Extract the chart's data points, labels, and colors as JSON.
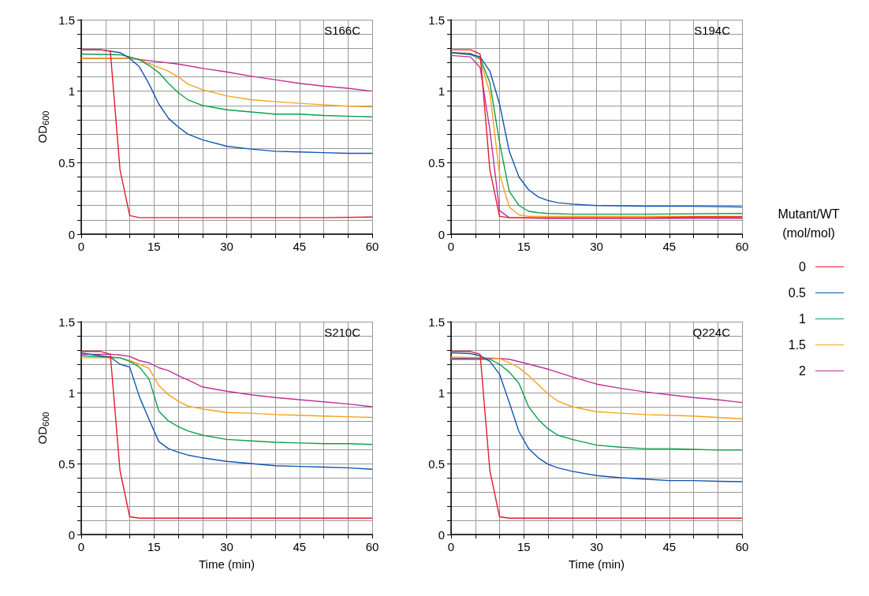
{
  "chart_data": [
    {
      "type": "line",
      "title": "S166C",
      "ylabel": "OD$_{600}$",
      "legend": "right",
      "legend_title": "Mutant/WT\n(mol/mol)",
      "grid": true,
      "marker": "none",
      "line_style": "solid",
      "xlim": [
        0,
        60
      ],
      "ylim": [
        0,
        1.5
      ],
      "xticks": [
        0,
        {
          "value": 5,
          "label": null
        },
        {
          "value": 10,
          "label": null
        },
        15,
        {
          "value": 20,
          "label": null
        },
        {
          "value": 25,
          "label": null
        },
        30,
        {
          "value": 35,
          "label": null
        },
        {
          "value": 40,
          "label": null
        },
        45,
        {
          "value": 50,
          "label": null
        },
        {
          "value": 55,
          "label": null
        },
        60
      ],
      "yticks": [
        0,
        {
          "value": 0.1,
          "label": null
        },
        {
          "value": 0.2,
          "label": null
        },
        {
          "value": 0.3,
          "label": null
        },
        {
          "value": 0.4,
          "label": null
        },
        0.5,
        {
          "value": 0.6,
          "label": null
        },
        {
          "value": 0.7,
          "label": null
        },
        {
          "value": 0.8,
          "label": null
        },
        {
          "value": 0.9,
          "label": null
        },
        1,
        {
          "value": 1.1,
          "label": null
        },
        {
          "value": 1.2,
          "label": null
        },
        {
          "value": 1.3,
          "label": null
        },
        {
          "value": 1.4,
          "label": null
        },
        1.5
      ],
      "series": [
        {
          "name": "0",
          "color": "#e8192c",
          "x": [
            0,
            4,
            6,
            8,
            10,
            12,
            20,
            30,
            40,
            50,
            60
          ],
          "values": [
            1.29,
            1.29,
            1.28,
            0.45,
            0.13,
            0.115,
            0.115,
            0.115,
            0.115,
            0.115,
            0.12
          ]
        },
        {
          "name": "0.5",
          "color": "#1155b0",
          "x": [
            0,
            4,
            8,
            10,
            12,
            14,
            16,
            18,
            20,
            22,
            25,
            30,
            35,
            40,
            45,
            50,
            55,
            60
          ],
          "values": [
            1.29,
            1.29,
            1.27,
            1.23,
            1.17,
            1.05,
            0.91,
            0.81,
            0.75,
            0.7,
            0.66,
            0.615,
            0.595,
            0.58,
            0.575,
            0.57,
            0.565,
            0.565
          ]
        },
        {
          "name": "1",
          "color": "#0aa04a",
          "x": [
            0,
            8,
            10,
            12,
            14,
            16,
            18,
            20,
            22,
            25,
            30,
            35,
            40,
            45,
            50,
            55,
            60
          ],
          "values": [
            1.26,
            1.255,
            1.24,
            1.22,
            1.18,
            1.13,
            1.055,
            0.99,
            0.94,
            0.9,
            0.87,
            0.855,
            0.84,
            0.84,
            0.83,
            0.825,
            0.82
          ]
        },
        {
          "name": "1.5",
          "color": "#f7a11a",
          "x": [
            0,
            10,
            12,
            15,
            18,
            20,
            22,
            25,
            30,
            35,
            40,
            45,
            50,
            55,
            60
          ],
          "values": [
            1.23,
            1.23,
            1.22,
            1.18,
            1.14,
            1.1,
            1.05,
            1.01,
            0.967,
            0.94,
            0.927,
            0.915,
            0.905,
            0.895,
            0.89
          ]
        },
        {
          "name": "2",
          "color": "#c0309a",
          "x": [
            0,
            10,
            15,
            20,
            25,
            30,
            35,
            40,
            45,
            50,
            55,
            60
          ],
          "values": [
            1.23,
            1.23,
            1.21,
            1.19,
            1.16,
            1.135,
            1.105,
            1.08,
            1.055,
            1.035,
            1.02,
            1.0
          ]
        }
      ]
    },
    {
      "type": "line",
      "title": "S194C",
      "grid": true,
      "marker": "none",
      "line_style": "solid",
      "xlim": [
        0,
        60
      ],
      "ylim": [
        0,
        1.5
      ],
      "xticks": [
        0,
        {
          "value": 5,
          "label": null
        },
        {
          "value": 10,
          "label": null
        },
        15,
        {
          "value": 20,
          "label": null
        },
        {
          "value": 25,
          "label": null
        },
        30,
        {
          "value": 35,
          "label": null
        },
        {
          "value": 40,
          "label": null
        },
        45,
        {
          "value": 50,
          "label": null
        },
        {
          "value": 55,
          "label": null
        },
        60
      ],
      "yticks": [
        0,
        {
          "value": 0.1,
          "label": null
        },
        {
          "value": 0.2,
          "label": null
        },
        {
          "value": 0.3,
          "label": null
        },
        {
          "value": 0.4,
          "label": null
        },
        0.5,
        {
          "value": 0.6,
          "label": null
        },
        {
          "value": 0.7,
          "label": null
        },
        {
          "value": 0.8,
          "label": null
        },
        {
          "value": 0.9,
          "label": null
        },
        1,
        {
          "value": 1.1,
          "label": null
        },
        {
          "value": 1.2,
          "label": null
        },
        {
          "value": 1.3,
          "label": null
        },
        {
          "value": 1.4,
          "label": null
        },
        1.5
      ],
      "series": [
        {
          "name": "0",
          "color": "#e8192c",
          "x": [
            0,
            4,
            6,
            8,
            10,
            12,
            20,
            30,
            40,
            50,
            60
          ],
          "values": [
            1.29,
            1.29,
            1.26,
            0.45,
            0.125,
            0.115,
            0.115,
            0.115,
            0.115,
            0.12,
            0.12
          ]
        },
        {
          "name": "0.5",
          "color": "#1155b0",
          "x": [
            0,
            4,
            6,
            8,
            10,
            12,
            14,
            16,
            18,
            20,
            22,
            25,
            30,
            40,
            50,
            60
          ],
          "values": [
            1.27,
            1.26,
            1.24,
            1.14,
            0.91,
            0.58,
            0.4,
            0.31,
            0.26,
            0.235,
            0.22,
            0.21,
            0.2,
            0.195,
            0.195,
            0.19
          ]
        },
        {
          "name": "1",
          "color": "#0aa04a",
          "x": [
            0,
            4,
            6,
            8,
            10,
            12,
            14,
            16,
            18,
            20,
            25,
            40,
            60
          ],
          "values": [
            1.27,
            1.255,
            1.23,
            1.06,
            0.64,
            0.3,
            0.2,
            0.16,
            0.15,
            0.145,
            0.14,
            0.14,
            0.145
          ]
        },
        {
          "name": "1.5",
          "color": "#f7a11a",
          "x": [
            0,
            4,
            6,
            8,
            10,
            12,
            14,
            16,
            20,
            40,
            60
          ],
          "values": [
            1.27,
            1.265,
            1.22,
            0.99,
            0.42,
            0.19,
            0.135,
            0.125,
            0.125,
            0.125,
            0.125
          ]
        },
        {
          "name": "2",
          "color": "#c0309a",
          "x": [
            0,
            4,
            6,
            8,
            10,
            12,
            20,
            40,
            60
          ],
          "values": [
            1.25,
            1.24,
            1.165,
            0.73,
            0.165,
            0.115,
            0.11,
            0.11,
            0.11
          ]
        }
      ]
    },
    {
      "type": "line",
      "title": "S210C",
      "xlabel": "Time (min)",
      "ylabel": "OD$_{600}$",
      "grid": true,
      "marker": "none",
      "line_style": "solid",
      "xlim": [
        0,
        60
      ],
      "ylim": [
        0,
        1.5
      ],
      "xticks": [
        0,
        {
          "value": 5,
          "label": null
        },
        {
          "value": 10,
          "label": null
        },
        15,
        {
          "value": 20,
          "label": null
        },
        {
          "value": 25,
          "label": null
        },
        30,
        {
          "value": 35,
          "label": null
        },
        {
          "value": 40,
          "label": null
        },
        45,
        {
          "value": 50,
          "label": null
        },
        {
          "value": 55,
          "label": null
        },
        60
      ],
      "yticks": [
        0,
        {
          "value": 0.1,
          "label": null
        },
        {
          "value": 0.2,
          "label": null
        },
        {
          "value": 0.3,
          "label": null
        },
        {
          "value": 0.4,
          "label": null
        },
        0.5,
        {
          "value": 0.6,
          "label": null
        },
        {
          "value": 0.7,
          "label": null
        },
        {
          "value": 0.8,
          "label": null
        },
        {
          "value": 0.9,
          "label": null
        },
        1,
        {
          "value": 1.1,
          "label": null
        },
        {
          "value": 1.2,
          "label": null
        },
        {
          "value": 1.3,
          "label": null
        },
        {
          "value": 1.4,
          "label": null
        },
        1.5
      ],
      "series": [
        {
          "name": "0",
          "color": "#e8192c",
          "x": [
            0,
            4,
            6,
            8,
            10,
            12,
            20,
            30,
            40,
            50,
            60
          ],
          "values": [
            1.29,
            1.29,
            1.27,
            0.45,
            0.125,
            0.115,
            0.115,
            0.115,
            0.115,
            0.115,
            0.115
          ]
        },
        {
          "name": "0.5",
          "color": "#1155b0",
          "x": [
            0,
            4,
            6,
            8,
            10,
            12,
            14,
            16,
            18,
            20,
            22,
            25,
            30,
            35,
            40,
            45,
            50,
            55,
            60
          ],
          "values": [
            1.28,
            1.26,
            1.25,
            1.2,
            1.18,
            0.97,
            0.81,
            0.655,
            0.605,
            0.58,
            0.56,
            0.54,
            0.515,
            0.5,
            0.485,
            0.48,
            0.475,
            0.47,
            0.46
          ]
        },
        {
          "name": "1",
          "color": "#0aa04a",
          "x": [
            0,
            6,
            8,
            10,
            12,
            14,
            16,
            18,
            20,
            22,
            25,
            30,
            35,
            40,
            45,
            50,
            55,
            60
          ],
          "values": [
            1.26,
            1.25,
            1.245,
            1.22,
            1.18,
            1.095,
            0.87,
            0.8,
            0.76,
            0.73,
            0.7,
            0.67,
            0.66,
            0.65,
            0.645,
            0.64,
            0.64,
            0.635
          ]
        },
        {
          "name": "1.5",
          "color": "#f7a11a",
          "x": [
            0,
            8,
            10,
            12,
            14,
            16,
            18,
            20,
            22,
            25,
            30,
            35,
            40,
            45,
            50,
            55,
            60
          ],
          "values": [
            1.245,
            1.245,
            1.225,
            1.2,
            1.17,
            1.05,
            0.985,
            0.94,
            0.905,
            0.885,
            0.86,
            0.855,
            0.845,
            0.84,
            0.835,
            0.83,
            0.825
          ]
        },
        {
          "name": "2",
          "color": "#c0309a",
          "x": [
            0,
            6,
            8,
            10,
            12,
            14,
            16,
            18,
            20,
            22,
            25,
            30,
            35,
            40,
            45,
            50,
            55,
            60
          ],
          "values": [
            1.27,
            1.27,
            1.265,
            1.255,
            1.225,
            1.21,
            1.175,
            1.155,
            1.12,
            1.09,
            1.04,
            1.01,
            0.985,
            0.965,
            0.95,
            0.935,
            0.92,
            0.9
          ]
        }
      ]
    },
    {
      "type": "line",
      "title": "Q224C",
      "xlabel": "Time (min)",
      "grid": true,
      "marker": "none",
      "line_style": "solid",
      "xlim": [
        0,
        60
      ],
      "ylim": [
        0,
        1.5
      ],
      "xticks": [
        0,
        {
          "value": 5,
          "label": null
        },
        {
          "value": 10,
          "label": null
        },
        15,
        {
          "value": 20,
          "label": null
        },
        {
          "value": 25,
          "label": null
        },
        30,
        {
          "value": 35,
          "label": null
        },
        {
          "value": 40,
          "label": null
        },
        45,
        {
          "value": 50,
          "label": null
        },
        {
          "value": 55,
          "label": null
        },
        60
      ],
      "yticks": [
        0,
        {
          "value": 0.1,
          "label": null
        },
        {
          "value": 0.2,
          "label": null
        },
        {
          "value": 0.3,
          "label": null
        },
        {
          "value": 0.4,
          "label": null
        },
        0.5,
        {
          "value": 0.6,
          "label": null
        },
        {
          "value": 0.7,
          "label": null
        },
        {
          "value": 0.8,
          "label": null
        },
        {
          "value": 0.9,
          "label": null
        },
        1,
        {
          "value": 1.1,
          "label": null
        },
        {
          "value": 1.2,
          "label": null
        },
        {
          "value": 1.3,
          "label": null
        },
        {
          "value": 1.4,
          "label": null
        },
        1.5
      ],
      "series": [
        {
          "name": "0",
          "color": "#e8192c",
          "x": [
            0,
            4,
            6,
            8,
            10,
            12,
            20,
            30,
            40,
            50,
            60
          ],
          "values": [
            1.29,
            1.29,
            1.27,
            0.45,
            0.125,
            0.115,
            0.115,
            0.115,
            0.115,
            0.115,
            0.115
          ]
        },
        {
          "name": "0.5",
          "color": "#1155b0",
          "x": [
            0,
            4,
            6,
            8,
            10,
            12,
            14,
            16,
            18,
            20,
            22,
            25,
            30,
            35,
            40,
            45,
            50,
            55,
            60
          ],
          "values": [
            1.28,
            1.275,
            1.26,
            1.22,
            1.13,
            0.93,
            0.725,
            0.605,
            0.54,
            0.495,
            0.47,
            0.445,
            0.415,
            0.4,
            0.39,
            0.38,
            0.38,
            0.375,
            0.372
          ]
        },
        {
          "name": "1",
          "color": "#0aa04a",
          "x": [
            0,
            8,
            10,
            12,
            14,
            16,
            18,
            20,
            22,
            25,
            30,
            35,
            40,
            45,
            50,
            55,
            60
          ],
          "values": [
            1.235,
            1.235,
            1.2,
            1.145,
            1.065,
            0.9,
            0.81,
            0.745,
            0.7,
            0.67,
            0.63,
            0.615,
            0.605,
            0.605,
            0.6,
            0.595,
            0.595
          ]
        },
        {
          "name": "1.5",
          "color": "#f7a11a",
          "x": [
            0,
            8,
            10,
            12,
            14,
            16,
            18,
            20,
            22,
            25,
            30,
            35,
            40,
            45,
            50,
            55,
            60
          ],
          "values": [
            1.25,
            1.245,
            1.24,
            1.21,
            1.175,
            1.12,
            1.055,
            0.99,
            0.94,
            0.9,
            0.865,
            0.855,
            0.845,
            0.84,
            0.835,
            0.825,
            0.815
          ]
        },
        {
          "name": "2",
          "color": "#c0309a",
          "x": [
            0,
            10,
            12,
            15,
            20,
            25,
            30,
            35,
            40,
            45,
            50,
            55,
            60
          ],
          "values": [
            1.24,
            1.24,
            1.235,
            1.21,
            1.165,
            1.11,
            1.06,
            1.03,
            1.005,
            0.985,
            0.965,
            0.95,
            0.93
          ]
        }
      ]
    }
  ]
}
